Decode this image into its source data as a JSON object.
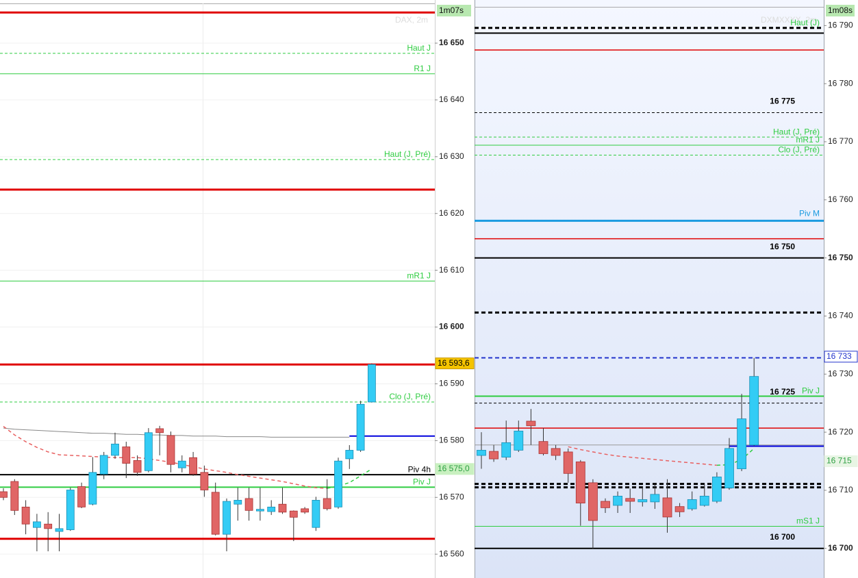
{
  "chart_data": [
    {
      "type": "candlestick",
      "title": "DAX, 2m",
      "timer": "1m07s",
      "ylim": [
        16555.8,
        16657.6
      ],
      "yticks": [
        {
          "value": 16560,
          "label": "16 560"
        },
        {
          "value": 16570,
          "label": "16 570"
        },
        {
          "value": 16580,
          "label": "16 580"
        },
        {
          "value": 16590,
          "label": "16 590"
        },
        {
          "value": 16600,
          "label": "16 600",
          "bold": true
        },
        {
          "value": 16610,
          "label": "16 610"
        },
        {
          "value": 16620,
          "label": "16 620"
        },
        {
          "value": 16630,
          "label": "16 630"
        },
        {
          "value": 16640,
          "label": "16 640"
        },
        {
          "value": 16650,
          "label": "16 650",
          "bold": true
        }
      ],
      "grid": true,
      "up_color": "#33ccf5",
      "down_color": "#e06666",
      "open": [
        16571.0,
        16572.8,
        16568.3,
        16564.7,
        16565.3,
        16564.0,
        16564.3,
        16571.9,
        16568.8,
        16574.1,
        16577.4,
        16578.9,
        16576.5,
        16574.7,
        16582.1,
        16580.9,
        16575.2,
        16577.0,
        16574.4,
        16570.9,
        16563.5,
        16568.8,
        16569.8,
        16567.6,
        16567.5,
        16568.8,
        16567.6,
        16568.0,
        16564.7,
        16569.8,
        16568.3,
        16576.8,
        16578.3,
        16586.8
      ],
      "high": [
        16571.6,
        16573.2,
        16569.5,
        16567.1,
        16567.4,
        16567.1,
        16571.7,
        16572.6,
        16577.1,
        16578.0,
        16581.4,
        16579.8,
        16577.4,
        16582.2,
        16582.6,
        16581.6,
        16577.4,
        16578.0,
        16575.6,
        16572.6,
        16569.8,
        16571.7,
        16571.7,
        16571.7,
        16569.5,
        16571.7,
        16567.7,
        16568.3,
        16570.1,
        16573.2,
        16577.0,
        16579.2,
        16587.0,
        16593.6
      ],
      "low": [
        16569.5,
        16566.9,
        16563.5,
        16560.5,
        16560.5,
        16560.5,
        16564.1,
        16568.1,
        16568.6,
        16573.2,
        16576.8,
        16573.4,
        16573.8,
        16574.4,
        16577.4,
        16574.4,
        16574.4,
        16573.8,
        16570.1,
        16563.3,
        16560.5,
        16565.9,
        16565.9,
        16565.9,
        16566.9,
        16567.1,
        16562.3,
        16567.1,
        16564.1,
        16567.7,
        16568.0,
        16575.0,
        16578.0,
        16586.7
      ],
      "close": [
        16570.0,
        16567.7,
        16565.3,
        16565.7,
        16564.5,
        16564.5,
        16571.3,
        16568.3,
        16574.4,
        16577.4,
        16579.4,
        16576.0,
        16574.4,
        16581.4,
        16581.4,
        16575.8,
        16576.4,
        16574.1,
        16571.3,
        16563.5,
        16569.3,
        16569.5,
        16567.7,
        16567.9,
        16568.3,
        16567.4,
        16566.5,
        16567.4,
        16569.5,
        16568.0,
        16576.4,
        16578.3,
        16586.4,
        16593.4
      ],
      "lines": [
        {
          "color": "#888888",
          "dash": "",
          "width": 1,
          "values": [
            16582.2,
            16582.0,
            16581.9,
            16581.8,
            16581.7,
            16581.6,
            16581.5,
            16581.4,
            16581.3,
            16581.3,
            16581.2,
            16581.1,
            16581.1,
            16581.0,
            16581.0,
            16580.9,
            16580.9,
            16580.8,
            16580.8,
            16580.8,
            16580.7,
            16580.7,
            16580.7,
            16580.7,
            16580.6,
            16580.6,
            16580.6,
            16580.6,
            16580.6,
            16580.6,
            16580.6,
            16580.6,
            null,
            null
          ]
        },
        {
          "color": "#e86060",
          "dash": "5,4",
          "width": 1.5,
          "values": [
            16582.5,
            16581.0,
            16579.8,
            16578.8,
            16578.0,
            16577.5,
            16577.4,
            16577.3,
            16577.2,
            16577.1,
            16577.0,
            16577.0,
            16577.0,
            16576.8,
            16576.5,
            16576.2,
            16575.8,
            16575.4,
            16575.0,
            16574.7,
            16574.4,
            16574.0,
            16573.7,
            16573.4,
            16573.1,
            16572.8,
            16572.4,
            16572.0,
            16571.7,
            16571.6,
            null,
            null,
            null,
            null
          ]
        },
        {
          "color": "#2ecc40",
          "dash": "5,4",
          "width": 1.5,
          "values": [
            null,
            null,
            null,
            null,
            null,
            null,
            null,
            null,
            null,
            null,
            null,
            null,
            null,
            null,
            null,
            null,
            null,
            null,
            null,
            null,
            null,
            null,
            null,
            null,
            null,
            null,
            null,
            null,
            null,
            16571.6,
            16572.0,
            16572.6,
            16573.8,
            16575.0
          ]
        }
      ],
      "levels": [
        {
          "value": 16655.4,
          "color": "#e00000",
          "width": 3,
          "dash": ""
        },
        {
          "value": 16648.2,
          "color": "#2ecc40",
          "width": 1,
          "dash": "4,3",
          "label": "Haut J"
        },
        {
          "value": 16644.6,
          "color": "#2ecc40",
          "width": 1,
          "dash": "",
          "label": "R1 J"
        },
        {
          "value": 16629.5,
          "color": "#2ecc40",
          "width": 1,
          "dash": "4,3",
          "label": "Haut (J, Pré)"
        },
        {
          "value": 16624.2,
          "color": "#e00000",
          "width": 3,
          "dash": ""
        },
        {
          "value": 16608.1,
          "color": "#2ecc40",
          "width": 1,
          "dash": "",
          "label": "mR1 J"
        },
        {
          "value": 16593.4,
          "color": "#e00000",
          "width": 3,
          "dash": ""
        },
        {
          "value": 16586.8,
          "color": "#2ecc40",
          "width": 1,
          "dash": "4,3",
          "label": "Clo (J, Pré)"
        },
        {
          "value": 16580.8,
          "color": "#0000dd",
          "width": 2,
          "dash": "",
          "start_bar": 31
        },
        {
          "value": 16574.0,
          "color": "#000000",
          "width": 2,
          "dash": "",
          "label": "Piv 4h",
          "label_color": "#000000"
        },
        {
          "value": 16571.8,
          "color": "#2ecc40",
          "width": 2,
          "dash": "",
          "label": "Piv J"
        },
        {
          "value": 16562.7,
          "color": "#e00000",
          "width": 3,
          "dash": ""
        }
      ],
      "badges": [
        {
          "value": 16593.6,
          "label": "16 593,6",
          "bg": "#f5c400",
          "fg": "#000000",
          "border": "#c89a00"
        },
        {
          "value": 16575.0,
          "label": "16 575,0",
          "bg": "#c9f0c0",
          "fg": "#2ea043",
          "border": "#c9f0c0"
        }
      ]
    },
    {
      "type": "candlestick",
      "title": "DXMXXXX, 2m",
      "timer": "1m08s",
      "ylim": [
        16694.9,
        16794.4
      ],
      "yticks": [
        {
          "value": 16700,
          "label": "16 700",
          "bold": true
        },
        {
          "value": 16710,
          "label": "16 710"
        },
        {
          "value": 16720,
          "label": "16 720"
        },
        {
          "value": 16730,
          "label": "16 730"
        },
        {
          "value": 16740,
          "label": "16 740"
        },
        {
          "value": 16750,
          "label": "16 750",
          "bold": true
        },
        {
          "value": 16760,
          "label": "16 760"
        },
        {
          "value": 16770,
          "label": "16 770"
        },
        {
          "value": 16780,
          "label": "16 780"
        },
        {
          "value": 16790,
          "label": "16 790"
        }
      ],
      "grid": false,
      "up_color": "#33ccf5",
      "down_color": "#e06666",
      "open": [
        16716.0,
        16716.7,
        16715.7,
        16716.9,
        16721.9,
        16718.4,
        16717.2,
        16716.6,
        16714.9,
        16711.3,
        16708.1,
        16707.4,
        16708.6,
        16708.0,
        16708.0,
        16708.7,
        16707.2,
        16706.8,
        16707.4,
        16708.1,
        16710.4,
        16713.7,
        16717.8
      ],
      "high": [
        16720.0,
        16717.8,
        16722.0,
        16722.0,
        16724.0,
        16720.7,
        16717.8,
        16717.2,
        16715.2,
        16711.9,
        16708.6,
        16709.8,
        16710.3,
        16710.6,
        16711.0,
        16711.9,
        16707.8,
        16709.8,
        16711.0,
        16713.1,
        16719.0,
        16726.6,
        16732.8
      ],
      "low": [
        16713.7,
        16714.9,
        16715.2,
        16716.6,
        16717.8,
        16716.0,
        16715.2,
        16711.3,
        16703.9,
        16699.9,
        16706.1,
        16706.1,
        16706.1,
        16707.2,
        16706.8,
        16702.7,
        16705.4,
        16706.5,
        16707.2,
        16707.8,
        16710.1,
        16713.3,
        16717.6
      ],
      "close": [
        16716.9,
        16715.4,
        16718.2,
        16720.2,
        16721.1,
        16716.3,
        16716.0,
        16712.9,
        16707.8,
        16704.8,
        16707.0,
        16709.0,
        16708.1,
        16708.4,
        16709.3,
        16705.4,
        16706.3,
        16708.4,
        16709.0,
        16712.3,
        16717.2,
        16722.3,
        16729.6
      ],
      "lines": [
        {
          "color": "#e86060",
          "dash": "5,4",
          "width": 1.5,
          "values": [
            null,
            null,
            null,
            null,
            null,
            null,
            null,
            16717.5,
            16717.0,
            16716.6,
            16716.2,
            16715.9,
            16715.7,
            16715.5,
            16715.3,
            16715.1,
            16714.9,
            16714.7,
            16714.5,
            16714.3,
            null,
            null,
            null
          ]
        },
        {
          "color": "#2ecc40",
          "dash": "5,4",
          "width": 1.5,
          "values": [
            null,
            null,
            null,
            null,
            null,
            null,
            null,
            null,
            null,
            null,
            null,
            null,
            null,
            null,
            null,
            null,
            null,
            null,
            null,
            16714.3,
            16714.4,
            16715.3,
            16717.2
          ]
        }
      ],
      "levels": [
        {
          "value": 16789.6,
          "color": "#000000",
          "width": 3,
          "dash": "6,4",
          "label": "Haut (J)"
        },
        {
          "value": 16788.7,
          "color": "#000000",
          "width": 2,
          "dash": ""
        },
        {
          "value": 16785.8,
          "color": "#e00000",
          "width": 1.5,
          "dash": ""
        },
        {
          "value": 16775,
          "color": "#000000",
          "width": 1,
          "dash": "4,3",
          "label": "16 775",
          "bold": true
        },
        {
          "value": 16770.8,
          "color": "#2ecc40",
          "width": 1,
          "dash": "4,3",
          "label": "Haut (J, Pré)"
        },
        {
          "value": 16769.4,
          "color": "#2ecc40",
          "width": 1,
          "dash": "",
          "label": "mR1 J"
        },
        {
          "value": 16767.7,
          "color": "#2ecc40",
          "width": 1,
          "dash": "4,3",
          "label": "Clo (J, Pré)"
        },
        {
          "value": 16756.4,
          "color": "#1a9be0",
          "width": 3,
          "dash": "",
          "label": "Piv M",
          "label_color": "#1a9be0",
          "big": true
        },
        {
          "value": 16753.3,
          "color": "#e00000",
          "width": 1.5,
          "dash": ""
        },
        {
          "value": 16750,
          "color": "#000000",
          "width": 2,
          "dash": "",
          "label": "16 750",
          "bold": true
        },
        {
          "value": 16740.6,
          "color": "#000000",
          "width": 3,
          "dash": "6,4"
        },
        {
          "value": 16732.8,
          "color": "#2233cc",
          "width": 2,
          "dash": "6,4"
        },
        {
          "value": 16726.2,
          "color": "#2ecc40",
          "width": 2,
          "dash": "",
          "label": "Piv J"
        },
        {
          "value": 16725,
          "color": "#000000",
          "width": 1,
          "dash": "4,3",
          "label": "16 725",
          "bold": true
        },
        {
          "value": 16720.7,
          "color": "#e00000",
          "width": 1.5,
          "dash": ""
        },
        {
          "value": 16717.8,
          "color": "#999999",
          "width": 1,
          "dash": ""
        },
        {
          "value": 16717.6,
          "color": "#0000dd",
          "width": 2,
          "dash": "",
          "start_bar": 20
        },
        {
          "value": 16711.1,
          "color": "#000000",
          "width": 3,
          "dash": "6,4"
        },
        {
          "value": 16710.5,
          "color": "#000000",
          "width": 3,
          "dash": "6,4"
        },
        {
          "value": 16703.8,
          "color": "#2ecc40",
          "width": 1,
          "dash": "",
          "label": "mS1 J"
        },
        {
          "value": 16700,
          "color": "#000000",
          "width": 2,
          "dash": "",
          "label": "16 700",
          "bold": true
        }
      ],
      "badges": [
        {
          "value": 16733,
          "label": "16 733",
          "bg": "#ffffff",
          "fg": "#2233cc",
          "border": "#2233cc"
        },
        {
          "value": 16715,
          "label": "16 715",
          "bg": "#e8f5e4",
          "fg": "#2ea043",
          "border": "#e8f5e4"
        }
      ]
    }
  ]
}
